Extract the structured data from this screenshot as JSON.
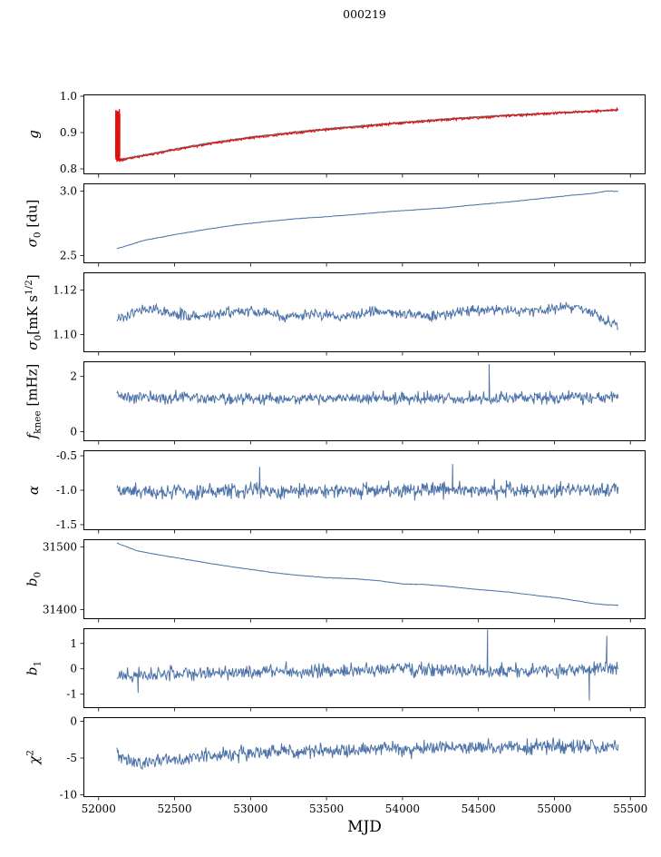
{
  "chart_data": {
    "type": "line",
    "title": "000219",
    "xlabel": "MJD",
    "grid": false,
    "legend": "none",
    "x_range": [
      52120,
      55420
    ],
    "xlim": [
      51900,
      55600
    ],
    "xticks": [
      52000,
      52500,
      53000,
      53500,
      54000,
      54500,
      55000,
      55500
    ],
    "xtick_labels": [
      "52000",
      "52500",
      "53000",
      "53500",
      "54000",
      "54500",
      "55000",
      "55500"
    ],
    "n_points": 750,
    "colors": {
      "blue": "#4c72a8",
      "red": "#e01010",
      "gray": "#6e6e6e"
    },
    "subplots": [
      {
        "name": "g",
        "ylabel_segments": [
          {
            "t": "g",
            "i": 1
          }
        ],
        "ylim": [
          0.785,
          1.005
        ],
        "yticks": [
          0.8,
          0.9,
          1.0
        ],
        "ytick_labels": [
          "0.8",
          "0.9",
          "1.0"
        ],
        "series": [
          {
            "name": "g-trend",
            "color": "gray",
            "width": 1.5,
            "noise": 0.0012,
            "anchors": [
              [
                52120,
                0.824
              ],
              [
                52250,
                0.834
              ],
              [
                52400,
                0.846
              ],
              [
                52600,
                0.862
              ],
              [
                52800,
                0.875
              ],
              [
                53000,
                0.887
              ],
              [
                53250,
                0.899
              ],
              [
                53500,
                0.91
              ],
              [
                53750,
                0.919
              ],
              [
                54000,
                0.928
              ],
              [
                54250,
                0.936
              ],
              [
                54500,
                0.943
              ],
              [
                54750,
                0.949
              ],
              [
                55000,
                0.954
              ],
              [
                55200,
                0.958
              ],
              [
                55420,
                0.962
              ]
            ]
          },
          {
            "name": "g-gain",
            "color": "red",
            "width": 1.1,
            "noise": 0.0032,
            "anchors": [
              [
                52120,
                0.822
              ],
              [
                52250,
                0.832
              ],
              [
                52400,
                0.844
              ],
              [
                52600,
                0.86
              ],
              [
                52800,
                0.873
              ],
              [
                53000,
                0.885
              ],
              [
                53250,
                0.897
              ],
              [
                53500,
                0.908
              ],
              [
                53750,
                0.917
              ],
              [
                54000,
                0.926
              ],
              [
                54250,
                0.934
              ],
              [
                54500,
                0.941
              ],
              [
                54750,
                0.947
              ],
              [
                55000,
                0.953
              ],
              [
                55200,
                0.957
              ],
              [
                55420,
                0.963
              ]
            ],
            "burst": {
              "x0": 52112,
              "x1": 52140,
              "ymin": 0.82,
              "ymax": 0.965,
              "n": 44
            }
          }
        ]
      },
      {
        "name": "sigma0-du",
        "ylabel_segments": [
          {
            "t": "σ",
            "i": 1
          },
          {
            "t": "0",
            "sub": 1
          },
          {
            "t": " [du]"
          }
        ],
        "ylim": [
          2.44,
          3.06
        ],
        "yticks": [
          2.5,
          3.0
        ],
        "ytick_labels": [
          "2.5",
          "3.0"
        ],
        "series": [
          {
            "name": "sigma0-du",
            "color": "blue",
            "width": 1.0,
            "noise": 0.002,
            "anchors": [
              [
                52120,
                2.553
              ],
              [
                52300,
                2.618
              ],
              [
                52500,
                2.662
              ],
              [
                52700,
                2.702
              ],
              [
                52900,
                2.737
              ],
              [
                53100,
                2.763
              ],
              [
                53300,
                2.786
              ],
              [
                53500,
                2.801
              ],
              [
                53700,
                2.82
              ],
              [
                53900,
                2.84
              ],
              [
                54100,
                2.856
              ],
              [
                54300,
                2.872
              ],
              [
                54500,
                2.896
              ],
              [
                54700,
                2.916
              ],
              [
                54900,
                2.941
              ],
              [
                55100,
                2.966
              ],
              [
                55250,
                2.982
              ],
              [
                55350,
                3.001
              ],
              [
                55420,
                2.997
              ]
            ]
          }
        ]
      },
      {
        "name": "sigma0-mk",
        "ylabel_segments": [
          {
            "t": "σ",
            "i": 1
          },
          {
            "t": "0",
            "sub": 1
          },
          {
            "t": "[mK s"
          },
          {
            "t": "1/2",
            "sup": 1
          },
          {
            "t": "]"
          }
        ],
        "ylim": [
          1.092,
          1.128
        ],
        "yticks": [
          1.1,
          1.12
        ],
        "ytick_labels": [
          "1.10",
          "1.12"
        ],
        "series": [
          {
            "name": "sigma0-mk",
            "color": "blue",
            "width": 1.0,
            "noise": 0.0022,
            "anchors": [
              [
                52120,
                1.106
              ],
              [
                52250,
                1.1105
              ],
              [
                52400,
                1.1115
              ],
              [
                52600,
                1.108
              ],
              [
                52800,
                1.1095
              ],
              [
                53000,
                1.111
              ],
              [
                53200,
                1.108
              ],
              [
                53400,
                1.1095
              ],
              [
                53600,
                1.1075
              ],
              [
                53800,
                1.1105
              ],
              [
                54000,
                1.1095
              ],
              [
                54200,
                1.108
              ],
              [
                54400,
                1.1105
              ],
              [
                54600,
                1.1115
              ],
              [
                54800,
                1.1105
              ],
              [
                55000,
                1.112
              ],
              [
                55100,
                1.1125
              ],
              [
                55250,
                1.11
              ],
              [
                55350,
                1.106
              ],
              [
                55420,
                1.1035
              ]
            ]
          }
        ]
      },
      {
        "name": "fknee",
        "ylabel_segments": [
          {
            "t": "f",
            "i": 1
          },
          {
            "t": "knee",
            "sub": 1
          },
          {
            "t": " [mHz]"
          }
        ],
        "ylim": [
          -0.35,
          2.55
        ],
        "yticks": [
          0,
          2
        ],
        "ytick_labels": [
          "0",
          "2"
        ],
        "series": [
          {
            "name": "fknee",
            "color": "blue",
            "width": 1.0,
            "noise": 0.21,
            "anchors": [
              [
                52120,
                1.28
              ],
              [
                52500,
                1.22
              ],
              [
                53000,
                1.2
              ],
              [
                53500,
                1.21
              ],
              [
                54000,
                1.2
              ],
              [
                54500,
                1.21
              ],
              [
                55000,
                1.2
              ],
              [
                55420,
                1.26
              ]
            ],
            "spikes": [
              [
                54570,
                2.45
              ]
            ]
          }
        ]
      },
      {
        "name": "alpha",
        "ylabel_segments": [
          {
            "t": "α",
            "i": 1
          }
        ],
        "ylim": [
          -1.58,
          -0.42
        ],
        "yticks": [
          -1.5,
          -1.0,
          -0.5
        ],
        "ytick_labels": [
          "-1.5",
          "-1.0",
          "-0.5"
        ],
        "series": [
          {
            "name": "alpha",
            "color": "blue",
            "width": 1.0,
            "noise": 0.105,
            "anchors": [
              [
                52120,
                -1.03
              ],
              [
                52600,
                -1.02
              ],
              [
                53000,
                -1.02
              ],
              [
                53500,
                -1.01
              ],
              [
                54000,
                -1.0
              ],
              [
                54500,
                -1.0
              ],
              [
                55000,
                -1.0
              ],
              [
                55420,
                -1.0
              ]
            ],
            "spikes": [
              [
                53060,
                -0.66
              ],
              [
                54330,
                -0.62
              ]
            ]
          }
        ]
      },
      {
        "name": "b0",
        "ylabel_segments": [
          {
            "t": "b",
            "i": 1
          },
          {
            "t": "0",
            "sub": 1
          }
        ],
        "ylim": [
          31385,
          31512
        ],
        "yticks": [
          31400,
          31500
        ],
        "ytick_labels": [
          "31400",
          "31500"
        ],
        "series": [
          {
            "name": "b0",
            "color": "blue",
            "width": 1.0,
            "noise": 0.4,
            "anchors": [
              [
                52120,
                31506
              ],
              [
                52250,
                31494
              ],
              [
                52400,
                31487
              ],
              [
                52600,
                31479
              ],
              [
                52800,
                31471
              ],
              [
                53000,
                31464
              ],
              [
                53150,
                31459
              ],
              [
                53300,
                31455
              ],
              [
                53500,
                31451
              ],
              [
                53700,
                31449
              ],
              [
                53850,
                31446
              ],
              [
                54000,
                31441
              ],
              [
                54150,
                31440
              ],
              [
                54300,
                31437
              ],
              [
                54500,
                31432
              ],
              [
                54700,
                31428
              ],
              [
                54900,
                31422
              ],
              [
                55050,
                31418
              ],
              [
                55150,
                31414
              ],
              [
                55250,
                31410
              ],
              [
                55330,
                31408
              ],
              [
                55420,
                31407
              ]
            ]
          }
        ]
      },
      {
        "name": "b1",
        "ylabel_segments": [
          {
            "t": "b",
            "i": 1
          },
          {
            "t": "1",
            "sub": 1
          }
        ],
        "ylim": [
          -1.55,
          1.6
        ],
        "yticks": [
          -1,
          0,
          1
        ],
        "ytick_labels": [
          "-1",
          "0",
          "1"
        ],
        "series": [
          {
            "name": "b1",
            "color": "blue",
            "width": 1.0,
            "noise": 0.26,
            "anchors": [
              [
                52120,
                -0.25
              ],
              [
                52400,
                -0.2
              ],
              [
                52700,
                -0.16
              ],
              [
                53000,
                -0.12
              ],
              [
                53400,
                -0.1
              ],
              [
                53800,
                -0.04
              ],
              [
                54000,
                0.0
              ],
              [
                54200,
                -0.05
              ],
              [
                54500,
                -0.1
              ],
              [
                54800,
                -0.1
              ],
              [
                55000,
                -0.05
              ],
              [
                55200,
                0.0
              ],
              [
                55420,
                0.08
              ]
            ],
            "spikes": [
              [
                52260,
                -0.95
              ],
              [
                54560,
                1.55
              ],
              [
                55230,
                -1.25
              ],
              [
                55345,
                1.3
              ]
            ]
          }
        ]
      },
      {
        "name": "chi2",
        "ylabel_segments": [
          {
            "t": "χ",
            "i": 1
          },
          {
            "t": "2",
            "sup": 1
          }
        ],
        "ylim": [
          -10.3,
          0.55
        ],
        "yticks": [
          -10,
          -5,
          0
        ],
        "ytick_labels": [
          "-10",
          "-5",
          "0"
        ],
        "series": [
          {
            "name": "chi2",
            "color": "blue",
            "width": 1.0,
            "noise": 0.95,
            "anchors": [
              [
                52120,
                -4.2
              ],
              [
                52250,
                -5.7
              ],
              [
                52400,
                -5.4
              ],
              [
                52600,
                -5.0
              ],
              [
                52800,
                -4.6
              ],
              [
                53000,
                -4.3
              ],
              [
                53300,
                -4.0
              ],
              [
                53600,
                -3.9
              ],
              [
                54000,
                -3.8
              ],
              [
                54400,
                -3.4
              ],
              [
                54800,
                -3.5
              ],
              [
                55100,
                -3.3
              ],
              [
                55420,
                -3.5
              ]
            ]
          }
        ]
      }
    ]
  }
}
